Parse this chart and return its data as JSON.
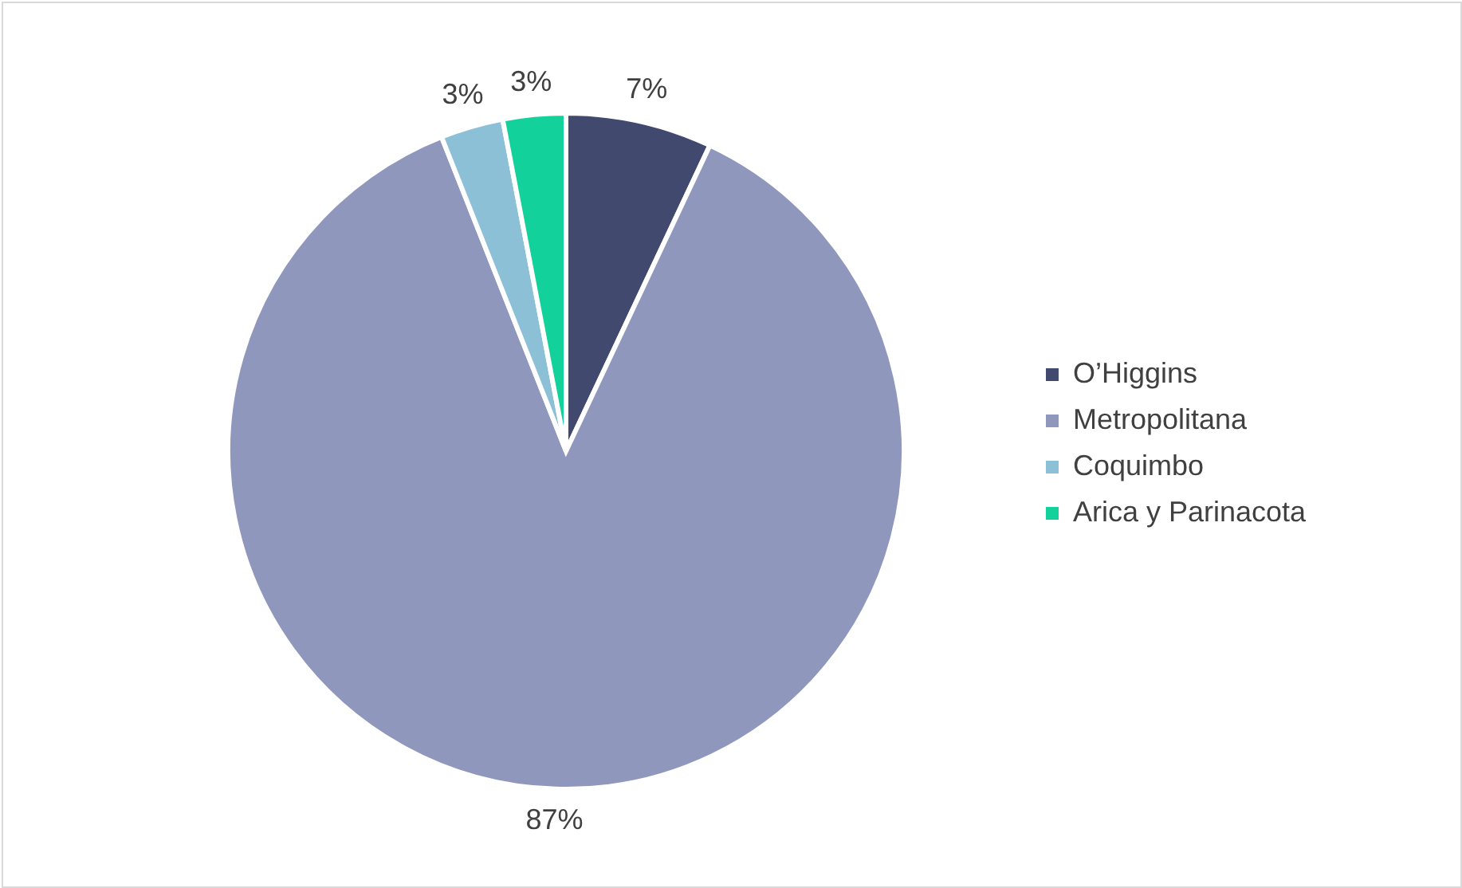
{
  "chart_data": {
    "type": "pie",
    "categories": [
      "O’Higgins",
      "Metropolitana",
      "Coquimbo",
      "Arica y Parinacota"
    ],
    "values": [
      7,
      87,
      3,
      3
    ],
    "colors": [
      "#414a6e",
      "#8f97bd",
      "#8cc0d6",
      "#13d19b"
    ],
    "value_labels": [
      "7%",
      "87%",
      "3%",
      "3%"
    ],
    "legend": "right"
  }
}
